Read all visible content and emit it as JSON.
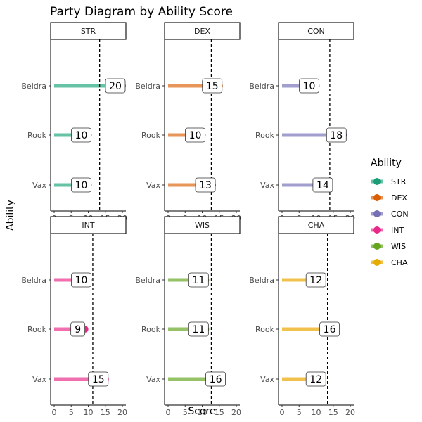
{
  "chart_data": {
    "type": "lollipop-faceted",
    "title": "Party Diagram by Ability Score",
    "xlabel": "Score",
    "ylabel": "Ability",
    "xlim": [
      0,
      20
    ],
    "x_ticks": [
      0,
      5,
      10,
      15,
      20
    ],
    "categories": [
      "Beldra",
      "Rook",
      "Vax"
    ],
    "legend": {
      "title": "Ability",
      "placement": "right",
      "entries": [
        "STR",
        "DEX",
        "CON",
        "INT",
        "WIS",
        "CHA"
      ]
    },
    "grid": false,
    "facets": [
      {
        "name": "STR",
        "values": [
          20,
          10,
          10
        ],
        "mean": 13.33,
        "color": "#1b9e77",
        "light": "#66c2a5"
      },
      {
        "name": "DEX",
        "values": [
          15,
          10,
          13
        ],
        "mean": 12.67,
        "color": "#d95f02",
        "light": "#e8955a"
      },
      {
        "name": "CON",
        "values": [
          10,
          18,
          14
        ],
        "mean": 14.0,
        "color": "#7570b3",
        "light": "#a29fcf"
      },
      {
        "name": "INT",
        "values": [
          10,
          9,
          15
        ],
        "mean": 11.33,
        "color": "#e7298a",
        "light": "#ef6faf"
      },
      {
        "name": "WIS",
        "values": [
          11,
          11,
          16
        ],
        "mean": 12.67,
        "color": "#66a61e",
        "light": "#95c267"
      },
      {
        "name": "CHA",
        "values": [
          12,
          16,
          12
        ],
        "mean": 13.33,
        "color": "#e6ab02",
        "light": "#f0c24d"
      }
    ]
  }
}
